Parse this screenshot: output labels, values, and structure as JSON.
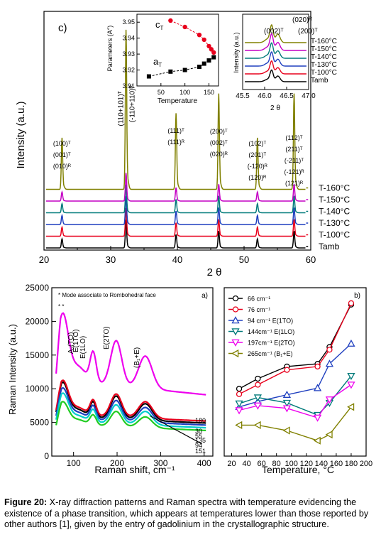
{
  "panel_c": {
    "label": "c)",
    "ylabel": "Intensity (a.u.)",
    "xlabel": "2 θ",
    "xlim": [
      20,
      60
    ],
    "xticks": [
      20,
      30,
      40,
      50,
      60
    ],
    "curves": [
      {
        "name": "Tamb",
        "color": "#000000",
        "offset": 0
      },
      {
        "name": "T-100°C",
        "color": "#e8001c",
        "offset": 1
      },
      {
        "name": "T-130°C",
        "color": "#1f3fbf",
        "offset": 2
      },
      {
        "name": "T-140°C",
        "color": "#007a7a",
        "offset": 3
      },
      {
        "name": "T-150°C",
        "color": "#c400c4",
        "offset": 4
      },
      {
        "name": "T-160°C",
        "color": "#808000",
        "offset": 5
      }
    ],
    "peaks": [
      {
        "x": 22.7,
        "h": 0.42,
        "label": [
          "(100)ᵀ",
          "(001)ᵀ",
          "(010)ᴿ"
        ]
      },
      {
        "x": 32.3,
        "h": 1.3,
        "label": [
          "(110+101)ᵀ",
          "(-110+110)ᴿ"
        ]
      },
      {
        "x": 39.8,
        "h": 0.62,
        "label": [
          "(111)ᵀ",
          "(111)ᴿ"
        ]
      },
      {
        "x": 46.2,
        "h": 0.78,
        "label": [
          "(200)ᵀ",
          "(002)ᵀ",
          "(020)ᴿ"
        ]
      },
      {
        "x": 52.0,
        "h": 0.42,
        "label": [
          "(102)ᵀ",
          "(201)ᵀ",
          "(-120)ᴿ",
          "(120)ᴿ"
        ]
      },
      {
        "x": 57.5,
        "h": 0.78,
        "label": [
          "(112)ᵀ",
          "(211)ᵀ",
          "(-211)ᵀ",
          "(-121)ᴿ",
          "(121)ᴿ"
        ]
      }
    ]
  },
  "inset_params": {
    "ylabel": "Parameters (A°)",
    "xlabel": "Temperature",
    "yticks": [
      "3.95",
      "3.94",
      "3.93",
      "3.92",
      "3.91"
    ],
    "ylim": [
      3.91,
      3.955
    ],
    "xticks": [
      50,
      100,
      150
    ],
    "xlim": [
      0,
      170
    ],
    "cT_label": "c",
    "cT_sub": "T",
    "aT_label": "a",
    "aT_sub": "T",
    "cT": [
      [
        70,
        3.951
      ],
      [
        100,
        3.947
      ],
      [
        130,
        3.942
      ],
      [
        140,
        3.939
      ],
      [
        150,
        3.935
      ],
      [
        155,
        3.933
      ],
      [
        160,
        3.931
      ]
    ],
    "aT": [
      [
        25,
        3.916
      ],
      [
        70,
        3.919
      ],
      [
        100,
        3.92
      ],
      [
        130,
        3.922
      ],
      [
        140,
        3.924
      ],
      [
        150,
        3.926
      ],
      [
        160,
        3.928
      ]
    ]
  },
  "inset_peak": {
    "ylabel": "Intensity (a.u.)",
    "xlabel": "2 θ",
    "xticks": [
      "45.5",
      "46.0",
      "46.5",
      "47.0"
    ],
    "xlim": [
      45.5,
      47.0
    ],
    "labels": [
      "(002)ᵀ",
      "(020)ᴿ",
      "(200)ᵀ"
    ],
    "curves": [
      {
        "name": "T-160°C",
        "color": "#808000"
      },
      {
        "name": "T-150°C",
        "color": "#c400c4"
      },
      {
        "name": "T-140°C",
        "color": "#007a7a"
      },
      {
        "name": "T-130°C",
        "color": "#1f3fbf"
      },
      {
        "name": "T-100°C",
        "color": "#e8001c"
      },
      {
        "name": "Tamb",
        "color": "#000000"
      }
    ]
  },
  "panel_a": {
    "label": "a)",
    "note": "* Mode associate to Rombohedral face",
    "star": "* *",
    "ylabel": "Raman Intensity (a.u.)",
    "xlabel": "Raman shift, cm⁻¹",
    "xlim": [
      50,
      420
    ],
    "ylim": [
      0,
      25000
    ],
    "yticks": [
      0,
      5000,
      10000,
      15000,
      20000,
      25000
    ],
    "xticks": [
      100,
      200,
      300,
      400
    ],
    "mode_labels": [
      "A₁(TO)",
      "E(1TO)",
      "E(1LO)",
      "E(2TO)",
      "(B₁+E)"
    ],
    "curves": [
      {
        "name": "180",
        "color": "#ee00ee",
        "base": 5500,
        "scale": 1.9
      },
      {
        "name": "30",
        "color": "#000000",
        "base": 3300,
        "scale": 0.95
      },
      {
        "name": "55",
        "color": "#e8001c",
        "base": 3600,
        "scale": 0.95
      },
      {
        "name": "135",
        "color": "#1f3fbf",
        "base": 3000,
        "scale": 0.85
      },
      {
        "name": "94",
        "color": "#00cccc",
        "base": 2600,
        "scale": 0.78
      },
      {
        "name": "151",
        "color": "#22cc22",
        "base": 2200,
        "scale": 0.62
      }
    ]
  },
  "panel_b": {
    "label": "b)",
    "xlabel": "Temperature, °C",
    "xlim": [
      10,
      200
    ],
    "xticks": [
      20,
      40,
      60,
      80,
      100,
      120,
      140,
      160,
      180,
      200
    ],
    "ylim": [
      0,
      25000
    ],
    "series": [
      {
        "name": "66 cm⁻¹",
        "color": "#000000",
        "marker": "circle",
        "y": [
          10000,
          11500,
          13300,
          13700,
          16200,
          22500
        ]
      },
      {
        "name": "76 cm⁻¹",
        "color": "#e8001c",
        "marker": "circle",
        "y": [
          9200,
          10600,
          12800,
          13300,
          15800,
          22700
        ]
      },
      {
        "name": "94 cm⁻¹  E(1TO)",
        "color": "#1f3fbf",
        "marker": "triangle-up",
        "y": [
          7300,
          8100,
          9100,
          10100,
          13700,
          16700
        ]
      },
      {
        "name": "144cm⁻¹ E(1LO)",
        "color": "#007a7a",
        "marker": "triangle-down",
        "y": [
          7800,
          8700,
          7900,
          6100,
          7900,
          11900
        ]
      },
      {
        "name": "197cm⁻¹ E(2TO)",
        "color": "#ee00ee",
        "marker": "triangle-down",
        "y": [
          6800,
          7500,
          7100,
          5700,
          8400,
          10600
        ]
      },
      {
        "name": "265cm⁻¹ (B₁+E)",
        "color": "#808000",
        "marker": "triangle-left",
        "y": [
          4600,
          4600,
          3800,
          2300,
          3200,
          7300
        ]
      }
    ],
    "x": [
      30,
      55,
      94,
      135,
      151,
      180
    ]
  },
  "caption": {
    "bold": "Figure 20:",
    "text": " X-ray diffraction patterns and Raman spectra with temperature evidencing the existence of a phase transition, which appears at temperatures lower than those reported by other authors [1], given by the entry of gadolinium in the crystallographic structure."
  }
}
